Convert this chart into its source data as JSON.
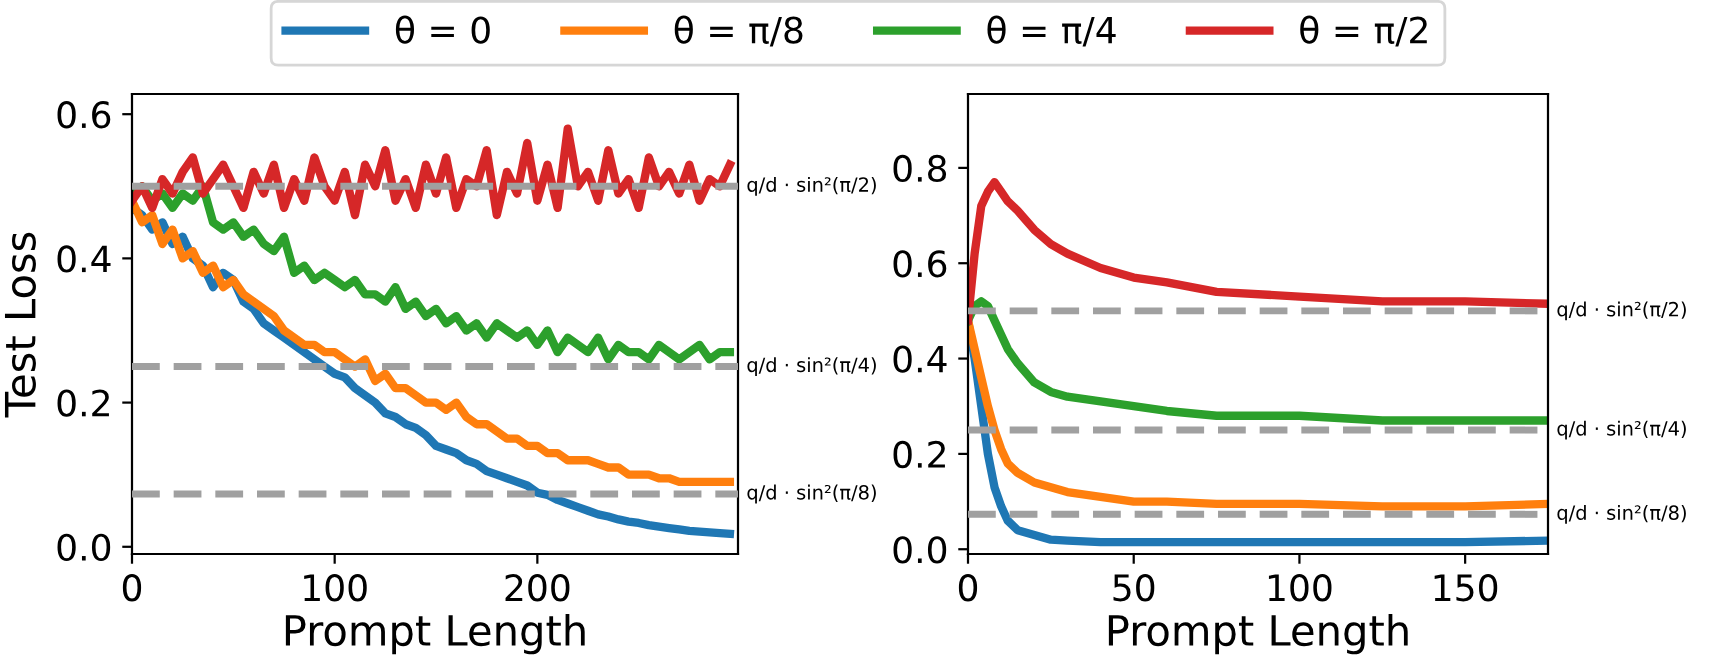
{
  "chart_data": [
    {
      "type": "line",
      "xlabel": "Prompt Length",
      "ylabel": "Test Loss",
      "legend": "top",
      "grid": false,
      "line_style": "solid",
      "marker": "none",
      "x": [
        0,
        5,
        10,
        15,
        20,
        25,
        30,
        35,
        40,
        45,
        50,
        55,
        60,
        65,
        70,
        75,
        80,
        85,
        90,
        95,
        100,
        105,
        110,
        115,
        120,
        125,
        130,
        135,
        140,
        145,
        150,
        155,
        160,
        165,
        170,
        175,
        180,
        185,
        190,
        195,
        200,
        205,
        210,
        215,
        220,
        225,
        230,
        235,
        240,
        245,
        250,
        255,
        260,
        265,
        270,
        275,
        280,
        285,
        290,
        295
      ],
      "xlim": [
        0,
        299
      ],
      "xticks": [
        0,
        100,
        200
      ],
      "ylim": [
        -0.01,
        0.628
      ],
      "yticks": [
        {
          "value": 0,
          "label": "0.0"
        },
        0.2,
        0.4,
        0.6
      ],
      "series": [
        {
          "name": "θ = 0",
          "color": "#1f77b4",
          "values": [
            0.47,
            0.46,
            0.44,
            0.45,
            0.42,
            0.43,
            0.4,
            0.39,
            0.36,
            0.38,
            0.37,
            0.34,
            0.33,
            0.31,
            0.3,
            0.29,
            0.28,
            0.27,
            0.26,
            0.25,
            0.24,
            0.235,
            0.22,
            0.21,
            0.2,
            0.185,
            0.18,
            0.17,
            0.165,
            0.155,
            0.14,
            0.135,
            0.13,
            0.12,
            0.115,
            0.105,
            0.1,
            0.095,
            0.09,
            0.085,
            0.075,
            0.072,
            0.065,
            0.06,
            0.055,
            0.05,
            0.045,
            0.042,
            0.038,
            0.035,
            0.033,
            0.03,
            0.028,
            0.026,
            0.024,
            0.022,
            0.021,
            0.02,
            0.019,
            0.018
          ]
        },
        {
          "name": "θ = π/8",
          "color": "#ff7f0e",
          "values": [
            0.48,
            0.45,
            0.46,
            0.42,
            0.44,
            0.4,
            0.41,
            0.38,
            0.39,
            0.36,
            0.37,
            0.35,
            0.34,
            0.33,
            0.32,
            0.3,
            0.29,
            0.28,
            0.28,
            0.27,
            0.27,
            0.26,
            0.25,
            0.26,
            0.23,
            0.24,
            0.22,
            0.22,
            0.21,
            0.2,
            0.2,
            0.19,
            0.2,
            0.18,
            0.17,
            0.17,
            0.16,
            0.15,
            0.15,
            0.14,
            0.14,
            0.13,
            0.13,
            0.12,
            0.12,
            0.12,
            0.115,
            0.11,
            0.11,
            0.1,
            0.1,
            0.1,
            0.095,
            0.095,
            0.09,
            0.09,
            0.09,
            0.09,
            0.09,
            0.09
          ]
        },
        {
          "name": "θ = π/4",
          "color": "#2ca02c",
          "values": [
            0.49,
            0.5,
            0.48,
            0.49,
            0.47,
            0.49,
            0.48,
            0.5,
            0.45,
            0.44,
            0.45,
            0.43,
            0.44,
            0.42,
            0.41,
            0.43,
            0.38,
            0.39,
            0.37,
            0.38,
            0.37,
            0.36,
            0.37,
            0.35,
            0.35,
            0.34,
            0.36,
            0.33,
            0.34,
            0.32,
            0.33,
            0.31,
            0.32,
            0.3,
            0.31,
            0.29,
            0.31,
            0.3,
            0.29,
            0.3,
            0.28,
            0.3,
            0.27,
            0.29,
            0.28,
            0.27,
            0.29,
            0.26,
            0.28,
            0.27,
            0.27,
            0.26,
            0.28,
            0.27,
            0.26,
            0.27,
            0.28,
            0.26,
            0.27,
            0.27
          ]
        },
        {
          "name": "θ = π/2",
          "color": "#d62728",
          "values": [
            0.48,
            0.5,
            0.47,
            0.51,
            0.49,
            0.52,
            0.54,
            0.49,
            0.51,
            0.53,
            0.5,
            0.47,
            0.52,
            0.49,
            0.53,
            0.47,
            0.51,
            0.48,
            0.54,
            0.5,
            0.48,
            0.52,
            0.46,
            0.53,
            0.5,
            0.55,
            0.48,
            0.51,
            0.47,
            0.53,
            0.49,
            0.54,
            0.47,
            0.51,
            0.5,
            0.55,
            0.46,
            0.52,
            0.49,
            0.56,
            0.48,
            0.53,
            0.47,
            0.58,
            0.5,
            0.52,
            0.48,
            0.55,
            0.49,
            0.51,
            0.47,
            0.54,
            0.5,
            0.52,
            0.49,
            0.53,
            0.48,
            0.51,
            0.5,
            0.53
          ]
        }
      ],
      "ref_lines": [
        {
          "axis": "y",
          "value": 0.5,
          "label": "q/d · sin²(π/2)",
          "color": "#a0a0a0",
          "line_style": "dashed"
        },
        {
          "axis": "y",
          "value": 0.25,
          "label": "q/d · sin²(π/4)",
          "color": "#a0a0a0",
          "line_style": "dashed"
        },
        {
          "axis": "y",
          "value": 0.0732,
          "label": "q/d · sin²(π/8)",
          "color": "#a0a0a0",
          "line_style": "dashed"
        }
      ]
    },
    {
      "type": "line",
      "xlabel": "Prompt Length",
      "grid": false,
      "line_style": "solid",
      "marker": "none",
      "x": [
        0,
        2,
        4,
        6,
        8,
        10,
        12,
        15,
        20,
        25,
        30,
        40,
        50,
        60,
        75,
        100,
        125,
        150,
        175
      ],
      "xlim": [
        0,
        175
      ],
      "xticks": [
        0,
        50,
        100,
        150
      ],
      "ylim": [
        -0.01,
        0.955
      ],
      "yticks": [
        {
          "value": 0,
          "label": "0.0"
        },
        0.2,
        0.4,
        0.6,
        0.8
      ],
      "series": [
        {
          "color": "#1f77b4",
          "values": [
            0.48,
            0.4,
            0.3,
            0.2,
            0.13,
            0.09,
            0.06,
            0.04,
            0.03,
            0.02,
            0.018,
            0.015,
            0.015,
            0.015,
            0.015,
            0.015,
            0.015,
            0.015,
            0.018
          ]
        },
        {
          "color": "#ff7f0e",
          "values": [
            0.48,
            0.42,
            0.36,
            0.3,
            0.25,
            0.21,
            0.18,
            0.16,
            0.14,
            0.13,
            0.12,
            0.11,
            0.1,
            0.1,
            0.095,
            0.095,
            0.09,
            0.09,
            0.095
          ]
        },
        {
          "color": "#2ca02c",
          "values": [
            0.48,
            0.51,
            0.52,
            0.51,
            0.48,
            0.45,
            0.42,
            0.39,
            0.35,
            0.33,
            0.32,
            0.31,
            0.3,
            0.29,
            0.28,
            0.28,
            0.27,
            0.27,
            0.27
          ]
        },
        {
          "color": "#d62728",
          "values": [
            0.48,
            0.62,
            0.72,
            0.75,
            0.77,
            0.75,
            0.73,
            0.71,
            0.67,
            0.64,
            0.62,
            0.59,
            0.57,
            0.56,
            0.54,
            0.53,
            0.52,
            0.52,
            0.515
          ]
        }
      ],
      "ref_lines": [
        {
          "axis": "y",
          "value": 0.5,
          "label": "q/d · sin²(π/2)",
          "color": "#a0a0a0",
          "line_style": "dashed"
        },
        {
          "axis": "y",
          "value": 0.25,
          "label": "q/d · sin²(π/4)",
          "color": "#a0a0a0",
          "line_style": "dashed"
        },
        {
          "axis": "y",
          "value": 0.0732,
          "label": "q/d · sin²(π/8)",
          "color": "#a0a0a0",
          "line_style": "dashed"
        }
      ]
    }
  ]
}
